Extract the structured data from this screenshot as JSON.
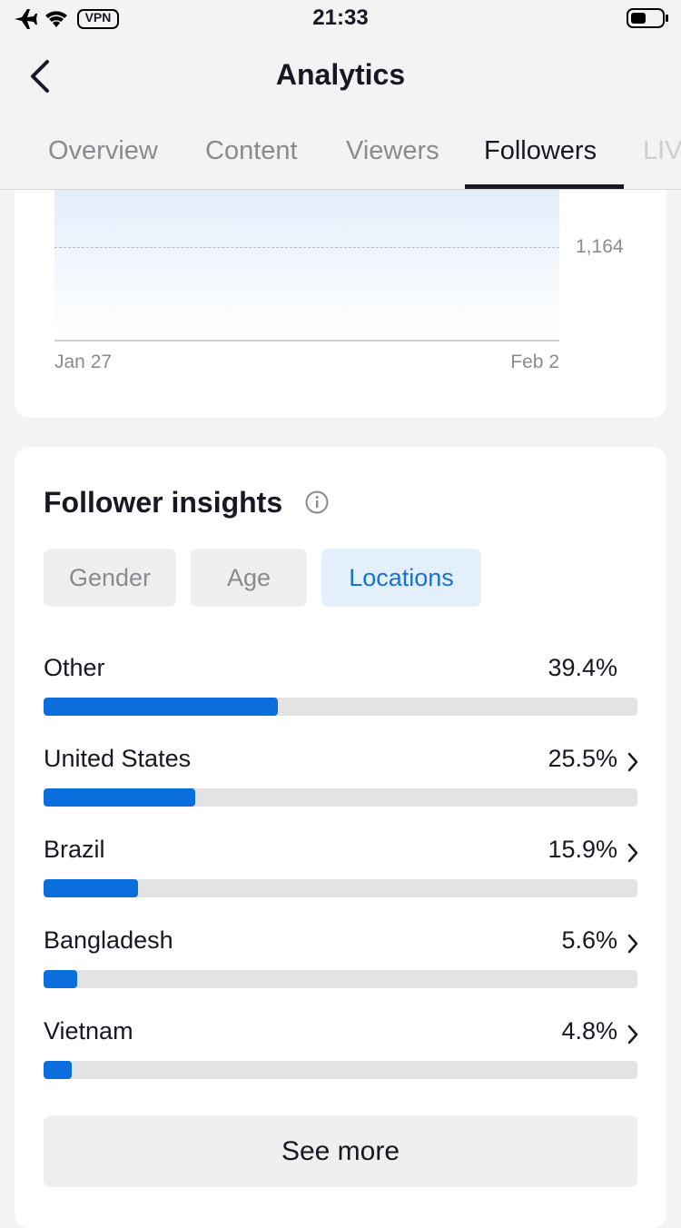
{
  "status_bar": {
    "vpn": "VPN",
    "time": "21:33"
  },
  "header": {
    "title": "Analytics"
  },
  "tabs": {
    "items": [
      "Overview",
      "Content",
      "Viewers",
      "Followers",
      "LIVE"
    ],
    "active": 3
  },
  "chart": {
    "y_label": "1,164",
    "x_labels": [
      "Jan 27",
      "Feb 2"
    ]
  },
  "insights": {
    "title": "Follower insights",
    "chips": {
      "items": [
        "Gender",
        "Age",
        "Locations"
      ],
      "active": 2
    },
    "locations": [
      {
        "name": "Other",
        "value": 39.4,
        "label": "39.4%",
        "chevron": false
      },
      {
        "name": "United States",
        "value": 25.5,
        "label": "25.5%",
        "chevron": true
      },
      {
        "name": "Brazil",
        "value": 15.9,
        "label": "15.9%",
        "chevron": true
      },
      {
        "name": "Bangladesh",
        "value": 5.6,
        "label": "5.6%",
        "chevron": true
      },
      {
        "name": "Vietnam",
        "value": 4.8,
        "label": "4.8%",
        "chevron": true
      }
    ],
    "button": "See more"
  }
}
